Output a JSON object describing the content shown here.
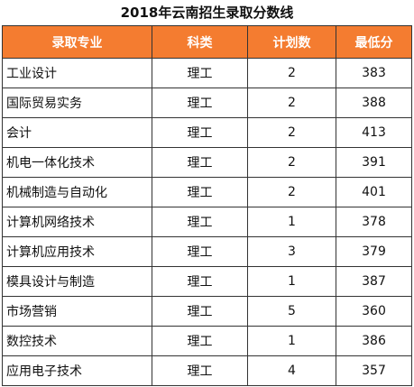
{
  "title": "2018年云南招生录取分数线",
  "colors": {
    "header_bg": "#f47c30",
    "header_text": "#ffffff",
    "border": "#333333"
  },
  "table": {
    "headers": [
      "录取专业",
      "科类",
      "计划数",
      "最低分"
    ],
    "rows": [
      {
        "major": "工业设计",
        "category": "理工",
        "plan": "2",
        "min_score": "383"
      },
      {
        "major": "国际贸易实务",
        "category": "理工",
        "plan": "2",
        "min_score": "388"
      },
      {
        "major": "会计",
        "category": "理工",
        "plan": "2",
        "min_score": "413"
      },
      {
        "major": "机电一体化技术",
        "category": "理工",
        "plan": "2",
        "min_score": "391"
      },
      {
        "major": "机械制造与自动化",
        "category": "理工",
        "plan": "2",
        "min_score": "401"
      },
      {
        "major": "计算机网络技术",
        "category": "理工",
        "plan": "1",
        "min_score": "378"
      },
      {
        "major": "计算机应用技术",
        "category": "理工",
        "plan": "3",
        "min_score": "379"
      },
      {
        "major": "模具设计与制造",
        "category": "理工",
        "plan": "1",
        "min_score": "387"
      },
      {
        "major": "市场营销",
        "category": "理工",
        "plan": "5",
        "min_score": "360"
      },
      {
        "major": "数控技术",
        "category": "理工",
        "plan": "1",
        "min_score": "386"
      },
      {
        "major": "应用电子技术",
        "category": "理工",
        "plan": "4",
        "min_score": "357"
      }
    ]
  }
}
